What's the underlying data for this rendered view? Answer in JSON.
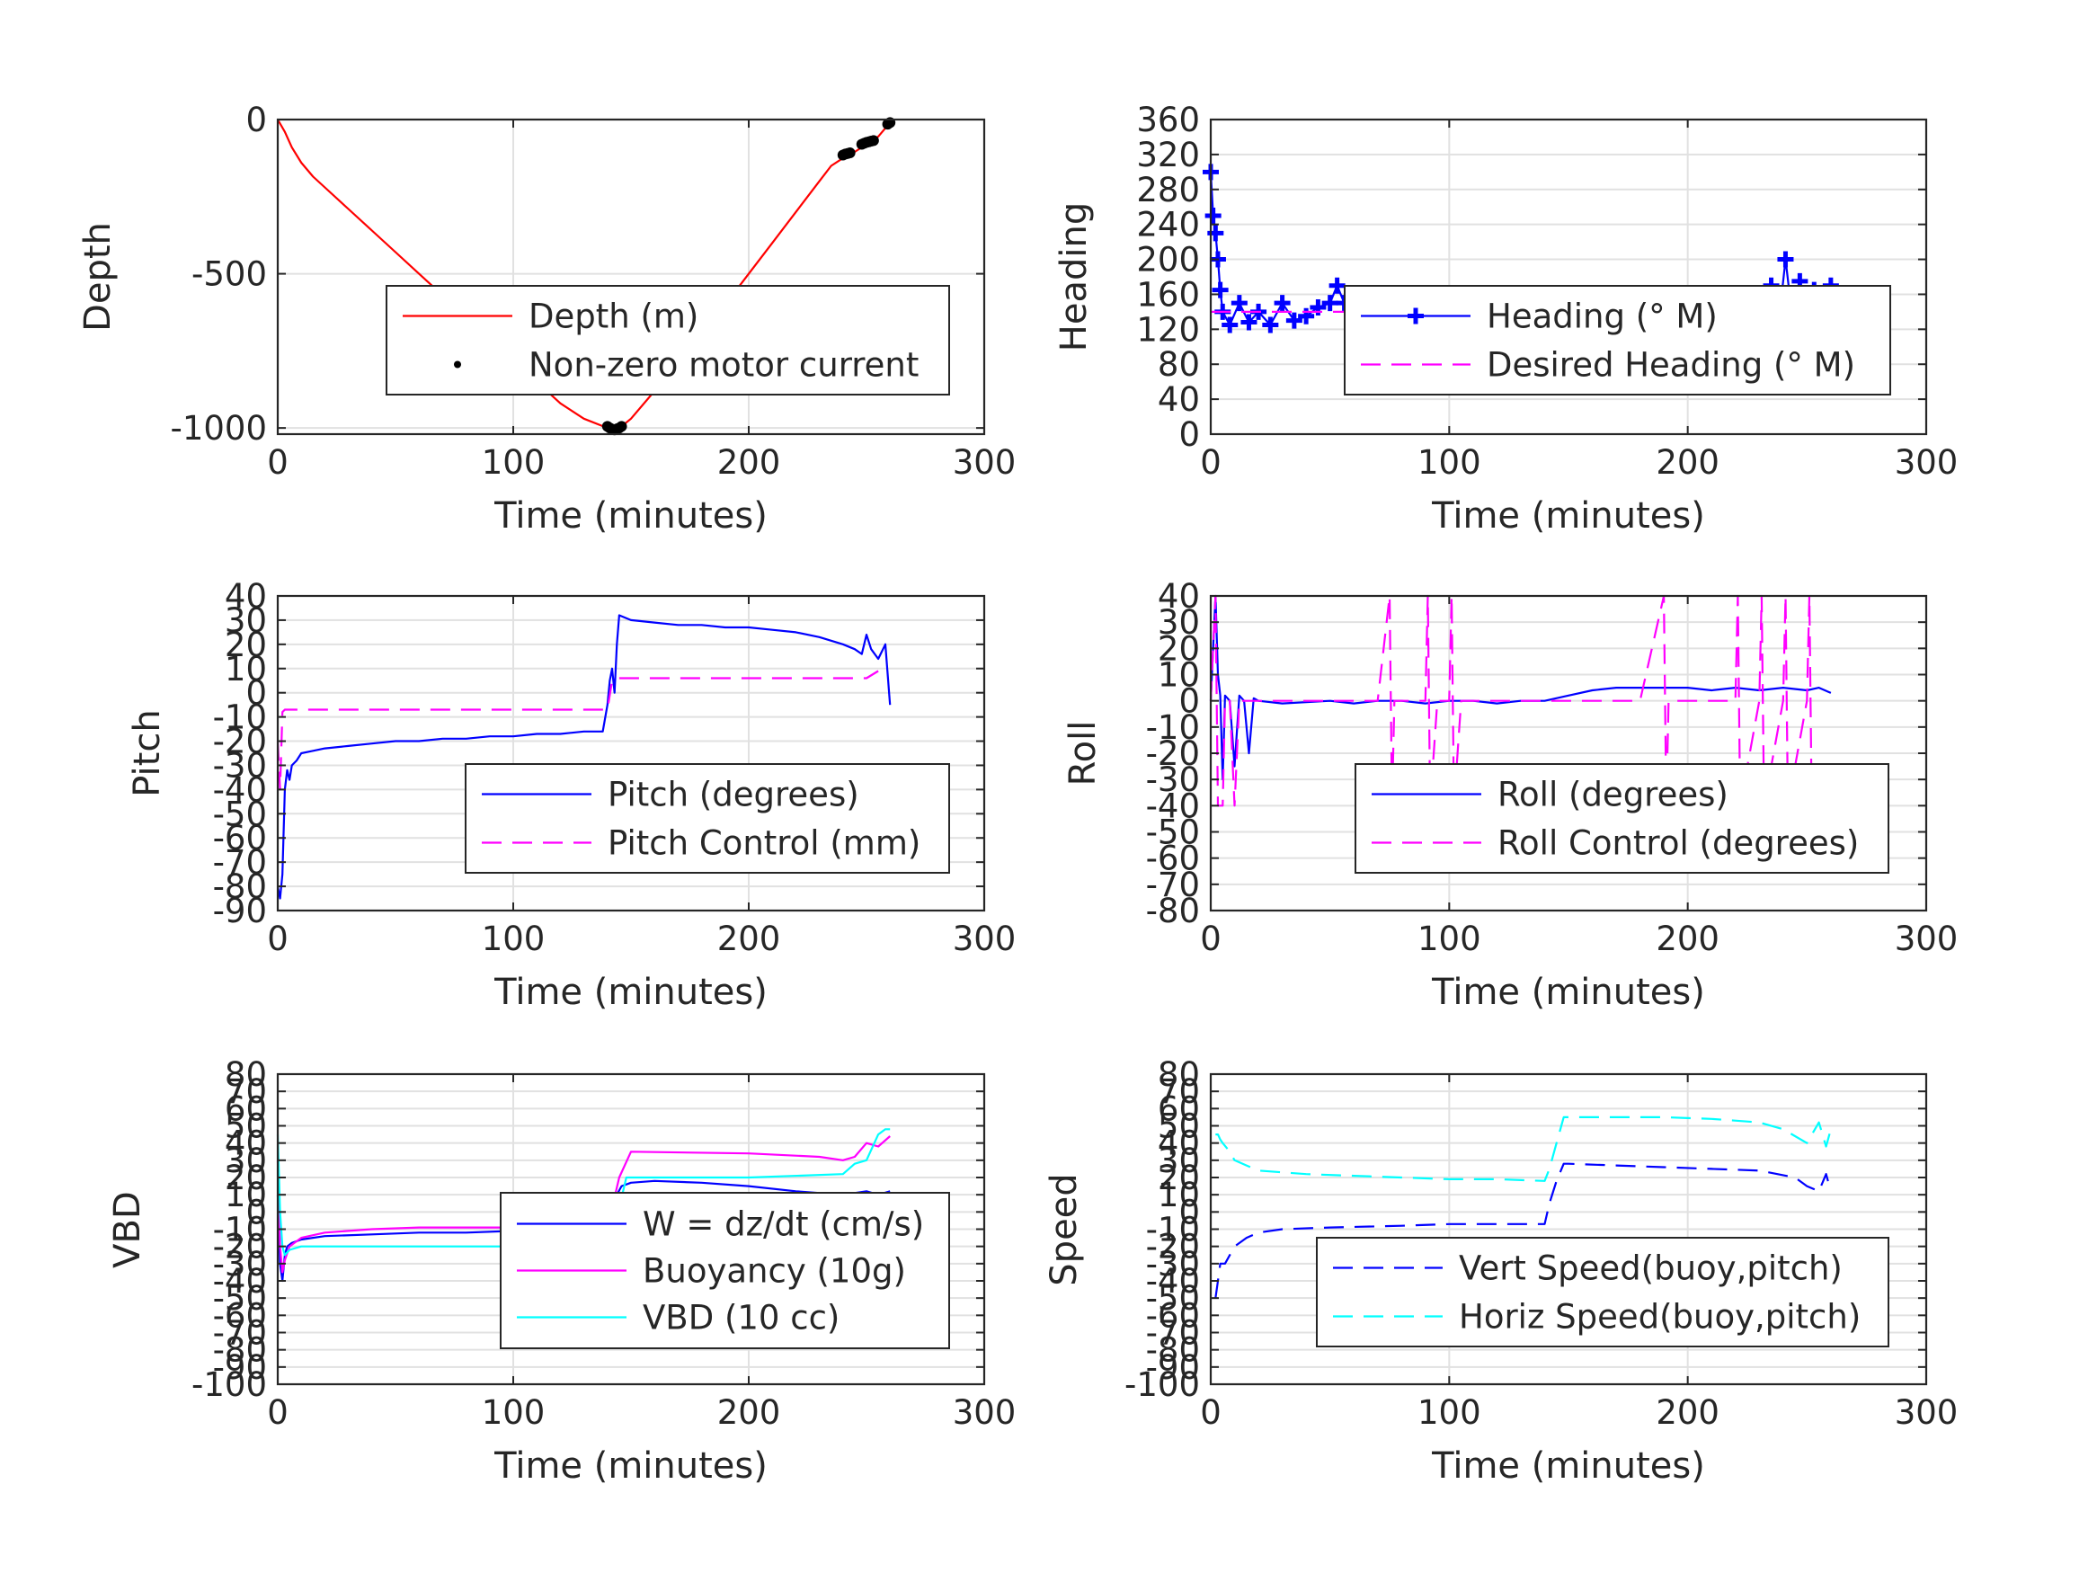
{
  "figure": {
    "background": "#ffffff"
  },
  "chart_data": [
    {
      "id": "depth",
      "type": "line",
      "xlabel": "Time (minutes)",
      "ylabel": "Depth",
      "xlim": [
        0,
        300
      ],
      "ylim": [
        -1020,
        0
      ],
      "xticks": [
        0,
        100,
        200,
        300
      ],
      "yticks": [
        0,
        -500,
        -1000
      ],
      "grid": true,
      "legend": "center-right",
      "series": [
        {
          "name": "Depth (m)",
          "color": "#ff0000",
          "style": "solid",
          "x": [
            0,
            3,
            6,
            10,
            15,
            20,
            30,
            40,
            50,
            60,
            70,
            80,
            90,
            100,
            110,
            120,
            130,
            140,
            143,
            146,
            150,
            160,
            170,
            180,
            190,
            200,
            210,
            220,
            230,
            235,
            240,
            245,
            250,
            255,
            260
          ],
          "y": [
            0,
            -40,
            -90,
            -140,
            -185,
            -220,
            -290,
            -360,
            -430,
            -500,
            -570,
            -640,
            -710,
            -780,
            -850,
            -920,
            -970,
            -1000,
            -1005,
            -995,
            -970,
            -880,
            -790,
            -700,
            -600,
            -500,
            -400,
            -300,
            -200,
            -150,
            -125,
            -105,
            -80,
            -55,
            -10
          ]
        },
        {
          "name": "Non-zero motor current",
          "color": "#000000",
          "style": "markers",
          "marker": "dot",
          "x": [
            140,
            141,
            142,
            143,
            144,
            145,
            146,
            240,
            241,
            242,
            243,
            248,
            249,
            250,
            251,
            252,
            253,
            259,
            260
          ],
          "y": [
            -995,
            -1000,
            -1004,
            -1006,
            -1003,
            -1000,
            -995,
            -115,
            -112,
            -110,
            -108,
            -80,
            -77,
            -74,
            -72,
            -70,
            -68,
            -15,
            -10
          ]
        }
      ]
    },
    {
      "id": "heading",
      "type": "line",
      "xlabel": "Time (minutes)",
      "ylabel": "Heading",
      "xlim": [
        0,
        300
      ],
      "ylim": [
        0,
        360
      ],
      "xticks": [
        0,
        100,
        200,
        300
      ],
      "yticks": [
        0,
        40,
        80,
        120,
        160,
        200,
        240,
        280,
        320,
        360
      ],
      "grid": true,
      "legend": "center-right",
      "series": [
        {
          "name": "Heading (° M)",
          "color": "#0000ff",
          "style": "line-markers",
          "marker": "plus",
          "x": [
            0,
            1,
            2,
            3,
            4,
            5,
            8,
            12,
            16,
            20,
            25,
            30,
            35,
            40,
            45,
            50,
            53,
            56,
            60,
            65,
            70,
            75,
            80,
            85,
            90,
            95,
            100,
            105,
            110,
            115,
            120,
            125,
            130,
            135,
            140,
            145,
            150,
            155,
            160,
            165,
            170,
            175,
            180,
            185,
            190,
            195,
            200,
            205,
            210,
            215,
            220,
            225,
            230,
            235,
            238,
            241,
            244,
            247,
            250,
            253,
            256,
            260
          ],
          "y": [
            300,
            250,
            230,
            200,
            165,
            140,
            125,
            150,
            128,
            140,
            125,
            150,
            130,
            135,
            145,
            150,
            170,
            150,
            130,
            125,
            145,
            130,
            150,
            125,
            160,
            130,
            155,
            130,
            160,
            140,
            150,
            130,
            120,
            145,
            150,
            130,
            140,
            110,
            150,
            130,
            145,
            125,
            150,
            135,
            155,
            130,
            140,
            150,
            125,
            145,
            130,
            160,
            120,
            170,
            125,
            200,
            130,
            175,
            120,
            165,
            125,
            170
          ]
        },
        {
          "name": "Desired Heading (° M)",
          "color": "#ff00ff",
          "style": "dashed",
          "x": [
            0,
            260
          ],
          "y": [
            140,
            140
          ]
        }
      ]
    },
    {
      "id": "pitch",
      "type": "line",
      "xlabel": "Time (minutes)",
      "ylabel": "Pitch",
      "xlim": [
        0,
        300
      ],
      "ylim": [
        -90,
        40
      ],
      "xticks": [
        0,
        100,
        200,
        300
      ],
      "yticks": [
        40,
        30,
        20,
        10,
        0,
        -10,
        -20,
        -30,
        -40,
        -50,
        -60,
        -70,
        -80,
        -90
      ],
      "grid": true,
      "legend": "bottom-right",
      "series": [
        {
          "name": "Pitch (degrees)",
          "color": "#0000ff",
          "style": "solid",
          "x": [
            0,
            1,
            2,
            3,
            4,
            5,
            6,
            8,
            10,
            15,
            20,
            30,
            40,
            50,
            60,
            70,
            80,
            90,
            100,
            110,
            120,
            130,
            138,
            140,
            141,
            142,
            143,
            144,
            145,
            150,
            160,
            170,
            180,
            190,
            200,
            210,
            220,
            230,
            240,
            245,
            248,
            250,
            252,
            255,
            258,
            260
          ],
          "y": [
            -80,
            -85,
            -75,
            -40,
            -32,
            -36,
            -30,
            -28,
            -25,
            -24,
            -23,
            -22,
            -21,
            -20,
            -20,
            -19,
            -19,
            -18,
            -18,
            -17,
            -17,
            -16,
            -16,
            -5,
            5,
            10,
            0,
            20,
            32,
            30,
            29,
            28,
            28,
            27,
            27,
            26,
            25,
            23,
            20,
            18,
            16,
            24,
            18,
            14,
            20,
            -5
          ]
        },
        {
          "name": "Pitch Control (mm)",
          "color": "#ff00ff",
          "style": "dashed",
          "x": [
            0,
            1,
            2,
            3,
            140,
            142,
            145,
            200,
            250,
            255
          ],
          "y": [
            -20,
            -40,
            -8,
            -7,
            -7,
            5,
            6,
            6,
            6,
            9
          ]
        }
      ]
    },
    {
      "id": "roll",
      "type": "line",
      "xlabel": "Time (minutes)",
      "ylabel": "Roll",
      "xlim": [
        0,
        300
      ],
      "ylim": [
        -80,
        40
      ],
      "xticks": [
        0,
        100,
        200,
        300
      ],
      "yticks": [
        40,
        30,
        20,
        10,
        0,
        -10,
        -20,
        -30,
        -40,
        -50,
        -60,
        -70,
        -80
      ],
      "grid": true,
      "legend": "bottom-right",
      "series": [
        {
          "name": "Roll (degrees)",
          "color": "#0000ff",
          "style": "solid",
          "x": [
            0,
            2,
            3,
            4,
            5,
            6,
            8,
            10,
            12,
            14,
            16,
            18,
            20,
            30,
            50,
            60,
            70,
            80,
            90,
            100,
            110,
            120,
            130,
            140,
            150,
            160,
            170,
            180,
            190,
            200,
            210,
            220,
            230,
            240,
            250,
            255,
            260
          ],
          "y": [
            0,
            40,
            10,
            2,
            -30,
            2,
            0,
            -25,
            2,
            0,
            -20,
            1,
            0,
            -1,
            0,
            -1,
            0,
            0,
            -1,
            0,
            0,
            -1,
            0,
            0,
            2,
            4,
            5,
            5,
            5,
            5,
            4,
            5,
            4,
            5,
            4,
            5,
            3
          ]
        },
        {
          "name": "Roll Control (degrees)",
          "color": "#ff00ff",
          "style": "dashed",
          "x": [
            0,
            2,
            3,
            5,
            6,
            8,
            10,
            12,
            14,
            20,
            30,
            40,
            50,
            60,
            70,
            75,
            76,
            77,
            80,
            90,
            91,
            92,
            95,
            100,
            101,
            102,
            105,
            110,
            120,
            130,
            140,
            150,
            160,
            170,
            180,
            190,
            191,
            192,
            200,
            210,
            220,
            221,
            222,
            230,
            231,
            232,
            240,
            241,
            242,
            250,
            251,
            252,
            258,
            260
          ],
          "y": [
            0,
            40,
            -40,
            -40,
            0,
            0,
            -40,
            0,
            0,
            0,
            0,
            0,
            0,
            0,
            0,
            40,
            -40,
            0,
            0,
            0,
            40,
            -40,
            0,
            0,
            40,
            -40,
            0,
            0,
            0,
            0,
            0,
            0,
            0,
            0,
            0,
            40,
            -40,
            0,
            0,
            0,
            0,
            40,
            -40,
            0,
            40,
            -40,
            0,
            40,
            -40,
            0,
            40,
            -40,
            -35,
            -25
          ]
        }
      ]
    },
    {
      "id": "vbd",
      "type": "line",
      "xlabel": "Time (minutes)",
      "ylabel": "VBD",
      "xlim": [
        0,
        300
      ],
      "ylim": [
        -100,
        80
      ],
      "xticks": [
        0,
        100,
        200,
        300
      ],
      "yticks": [
        80,
        70,
        60,
        50,
        40,
        30,
        20,
        10,
        0,
        -10,
        -20,
        -30,
        -40,
        -50,
        -60,
        -70,
        -80,
        -90,
        -100
      ],
      "grid": true,
      "legend": "center-right",
      "series": [
        {
          "name": "W = dz/dt (cm/s)",
          "color": "#0000ff",
          "style": "solid",
          "x": [
            0,
            1,
            2,
            3,
            4,
            6,
            10,
            20,
            40,
            60,
            80,
            100,
            120,
            138,
            142,
            146,
            150,
            160,
            180,
            200,
            220,
            240,
            250,
            255,
            260
          ],
          "y": [
            10,
            -30,
            -40,
            -25,
            -20,
            -18,
            -16,
            -14,
            -13,
            -12,
            -12,
            -11,
            -11,
            -12,
            5,
            15,
            17,
            18,
            17,
            15,
            12,
            10,
            12,
            10,
            12
          ]
        },
        {
          "name": "Buoyancy (10g)",
          "color": "#ff00ff",
          "style": "solid",
          "x": [
            0,
            1,
            2,
            3,
            5,
            10,
            20,
            40,
            60,
            80,
            100,
            120,
            140,
            145,
            150,
            200,
            230,
            240,
            245,
            250,
            255,
            260
          ],
          "y": [
            30,
            -20,
            -35,
            -28,
            -20,
            -15,
            -12,
            -10,
            -9,
            -9,
            -9,
            -9,
            -9,
            20,
            35,
            34,
            32,
            30,
            32,
            40,
            38,
            44
          ]
        },
        {
          "name": "VBD (10 cc)",
          "color": "#00ffff",
          "style": "solid",
          "x": [
            0,
            1,
            2,
            3,
            5,
            10,
            20,
            140,
            142,
            148,
            150,
            200,
            240,
            245,
            250,
            255,
            258,
            260
          ],
          "y": [
            45,
            0,
            -20,
            -25,
            -22,
            -20,
            -20,
            -20,
            -15,
            20,
            20,
            20,
            22,
            28,
            30,
            45,
            48,
            48
          ]
        }
      ]
    },
    {
      "id": "speed",
      "type": "line",
      "xlabel": "Time (minutes)",
      "ylabel": "Speed",
      "xlim": [
        0,
        300
      ],
      "ylim": [
        -100,
        80
      ],
      "xticks": [
        0,
        100,
        200,
        300
      ],
      "yticks": [
        80,
        70,
        60,
        50,
        40,
        30,
        20,
        10,
        0,
        -10,
        -20,
        -30,
        -40,
        -50,
        -60,
        -70,
        -80,
        -90,
        -100
      ],
      "grid": true,
      "legend": "bottom-right",
      "series": [
        {
          "name": "Vert Speed(buoy,pitch)",
          "color": "#0000ff",
          "style": "dashed",
          "x": [
            2,
            3,
            4,
            6,
            8,
            10,
            15,
            20,
            30,
            50,
            80,
            100,
            120,
            140,
            142,
            145,
            148,
            150,
            170,
            190,
            210,
            230,
            245,
            250,
            255,
            258,
            260
          ],
          "y": [
            -50,
            -40,
            -30,
            -30,
            -25,
            -20,
            -15,
            -12,
            -10,
            -9,
            -8,
            -7,
            -7,
            -7,
            5,
            18,
            28,
            28,
            27,
            26,
            25,
            24,
            20,
            15,
            12,
            22,
            12
          ]
        },
        {
          "name": "Horiz Speed(buoy,pitch)",
          "color": "#00ffff",
          "style": "dashed",
          "x": [
            2,
            3,
            4,
            5,
            8,
            10,
            15,
            20,
            40,
            60,
            80,
            100,
            120,
            140,
            142,
            145,
            148,
            150,
            170,
            190,
            210,
            230,
            240,
            245,
            250,
            255,
            258,
            260
          ],
          "y": [
            45,
            45,
            42,
            40,
            35,
            30,
            27,
            24,
            22,
            21,
            20,
            19,
            19,
            18,
            25,
            40,
            55,
            55,
            55,
            55,
            54,
            52,
            48,
            44,
            40,
            52,
            38,
            48
          ]
        }
      ]
    }
  ]
}
